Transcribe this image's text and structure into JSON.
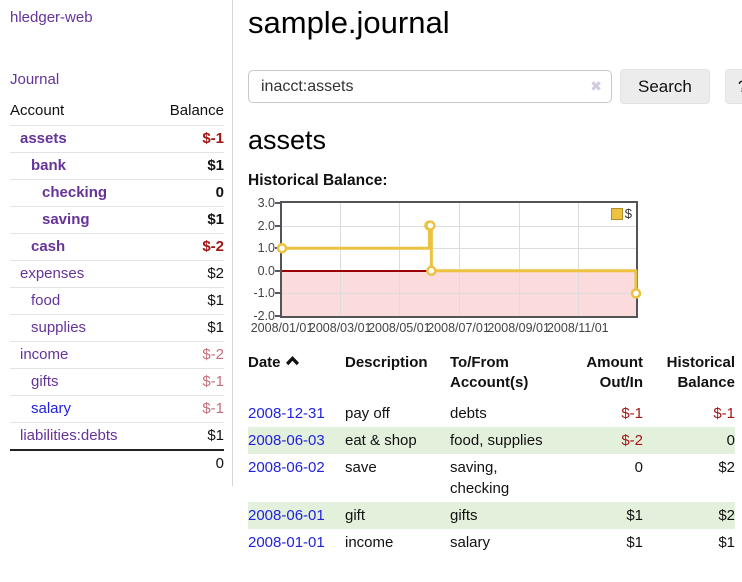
{
  "app": {
    "brand": "hledger-web",
    "nav_journal": "Journal"
  },
  "sidebar": {
    "header": {
      "account": "Account",
      "balance": "Balance"
    },
    "accounts": [
      {
        "name": "assets",
        "level": 1,
        "em": "true",
        "balance": "$-1",
        "color": "neg",
        "link": "purple"
      },
      {
        "name": "bank",
        "level": 2,
        "em": "true",
        "balance": "$1",
        "color": "pos",
        "link": "purple"
      },
      {
        "name": "checking",
        "level": 3,
        "em": "true",
        "balance": "0",
        "color": "pos",
        "link": "purple"
      },
      {
        "name": "saving",
        "level": 3,
        "em": "true",
        "balance": "$1",
        "color": "pos",
        "link": "purple"
      },
      {
        "name": "cash",
        "level": 2,
        "em": "true",
        "balance": "$-2",
        "color": "neg",
        "link": "purple"
      },
      {
        "name": "expenses",
        "level": 1,
        "em": "false",
        "balance": "$2",
        "color": "pos",
        "link": "purple"
      },
      {
        "name": "food",
        "level": 2,
        "em": "false",
        "balance": "$1",
        "color": "pos",
        "link": "purple"
      },
      {
        "name": "supplies",
        "level": 2,
        "em": "false",
        "balance": "$1",
        "color": "pos",
        "link": "purple"
      },
      {
        "name": "income",
        "level": 1,
        "em": "false",
        "balance": "$-2",
        "color": "neg-light",
        "link": "purple"
      },
      {
        "name": "gifts",
        "level": 2,
        "em": "false",
        "balance": "$-1",
        "color": "neg-light",
        "link": "purple"
      },
      {
        "name": "salary",
        "level": 2,
        "em": "false",
        "balance": "$-1",
        "color": "neg-light",
        "link": "blue"
      },
      {
        "name": "liabilities:debts",
        "level": 1,
        "em": "false",
        "balance": "$1",
        "color": "pos",
        "link": "purple"
      }
    ],
    "total": "0"
  },
  "header": {
    "title": "sample.journal"
  },
  "search": {
    "value": "inacct:assets",
    "clear_icon": "✖",
    "button": "Search",
    "help_button": "?"
  },
  "account_page": {
    "title": "assets",
    "chart_label": "Historical Balance:"
  },
  "chart_data": {
    "type": "line",
    "title": "Historical Balance",
    "step": true,
    "series": [
      {
        "name": "$",
        "color": "#edc240",
        "points": [
          [
            "2008-01-01",
            1
          ],
          [
            "2008-06-01",
            2
          ],
          [
            "2008-06-02",
            2
          ],
          [
            "2008-06-03",
            0
          ],
          [
            "2008-12-31",
            -1
          ]
        ]
      }
    ],
    "ylim": [
      -2,
      3
    ],
    "yticks": [
      "3.0",
      "2.0",
      "1.0",
      "0.0",
      "-1.0",
      "-2.0"
    ],
    "xticks": [
      "2008/01/01",
      "2008/03/01",
      "2008/05/01",
      "2008/07/01",
      "2008/09/01",
      "2008/11/01"
    ],
    "grid": true,
    "legend_position": "top-right",
    "negative_region_fill": "#fbdbdb",
    "zero_line_color": "#9a0000"
  },
  "register": {
    "columns": [
      {
        "label": "Date",
        "sorted": "ascending"
      },
      {
        "label": "Description"
      },
      {
        "label": "To/From Account(s)"
      },
      {
        "label": "Amount Out/In",
        "align": "right"
      },
      {
        "label": "Historical Balance",
        "align": "right"
      }
    ],
    "rows": [
      {
        "date": "2008-12-31",
        "description": "pay off",
        "accounts": "debts",
        "amount": "$-1",
        "amount_neg": "true",
        "balance": "$-1",
        "balance_neg": "true"
      },
      {
        "date": "2008-06-03",
        "description": "eat & shop",
        "accounts": "food, supplies",
        "amount": "$-2",
        "amount_neg": "true",
        "balance": "0",
        "balance_neg": "false"
      },
      {
        "date": "2008-06-02",
        "description": "save",
        "accounts": "saving, checking",
        "amount": "0",
        "amount_neg": "false",
        "balance": "$2",
        "balance_neg": "false"
      },
      {
        "date": "2008-06-01",
        "description": "gift",
        "accounts": "gifts",
        "amount": "$1",
        "amount_neg": "false",
        "balance": "$2",
        "balance_neg": "false"
      },
      {
        "date": "2008-01-01",
        "description": "income",
        "accounts": "salary",
        "amount": "$1",
        "amount_neg": "false",
        "balance": "$1",
        "balance_neg": "false"
      }
    ]
  }
}
